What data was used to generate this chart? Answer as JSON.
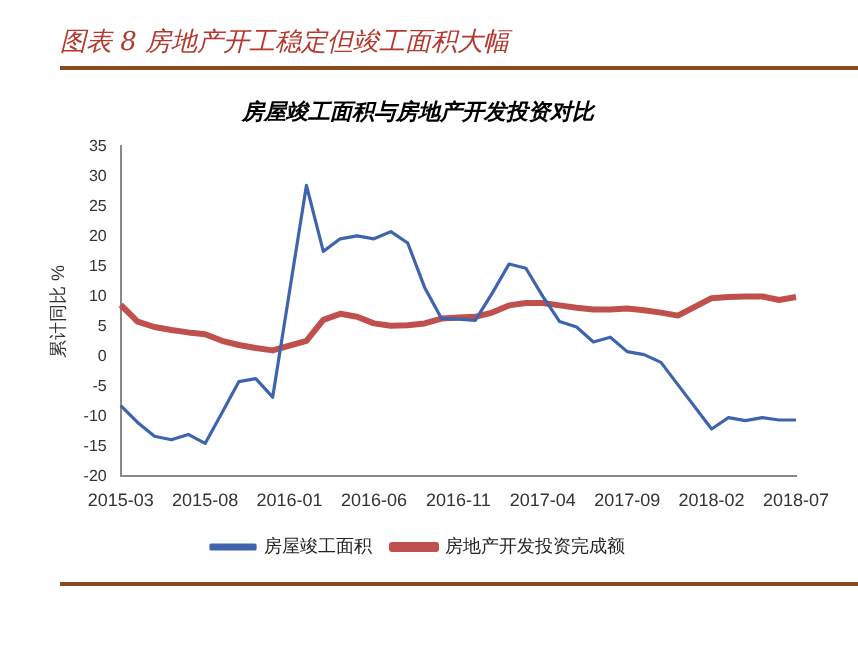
{
  "chart_data": {
    "type": "line",
    "title": "图表 8 房地产开工稳定但竣工面积大幅",
    "subtitle": "房屋竣工面积与房地产开发投资对比",
    "ylabel": "累计同比 %",
    "categories": [
      "2015-03",
      null,
      null,
      null,
      null,
      "2015-08",
      null,
      null,
      null,
      null,
      "2016-01",
      null,
      null,
      null,
      null,
      "2016-06",
      null,
      null,
      null,
      null,
      "2016-11",
      null,
      null,
      null,
      null,
      "2017-04",
      null,
      null,
      null,
      null,
      "2017-09",
      null,
      null,
      null,
      null,
      "2018-02",
      null,
      null,
      null,
      null,
      "2018-07"
    ],
    "series": [
      {
        "name": "房屋竣工面积",
        "color": "#3f64ae",
        "values": [
          -8.2,
          -11,
          -13.3,
          -13.9,
          -13,
          -14.5,
          -9.4,
          -4.2,
          -3.7,
          -6.8,
          null,
          28.5,
          17.5,
          19.6,
          20.1,
          19.6,
          20.8,
          18.9,
          11.5,
          6.3,
          6.2,
          6.0,
          10.5,
          15.4,
          14.7,
          10,
          5.8,
          4.9,
          2.4,
          3.2,
          0.8,
          0.3,
          -1,
          -4.7,
          null,
          -12.1,
          -10.2,
          -10.7,
          -10.2,
          -10.6,
          -10.6
        ]
      },
      {
        "name": "房地产开发投资完成额",
        "color": "#c0504d",
        "values": [
          8.6,
          5.8,
          4.9,
          4.4,
          4.0,
          3.7,
          2.6,
          1.9,
          1.4,
          1.0,
          null,
          2.6,
          6.1,
          7.1,
          6.6,
          5.5,
          5.1,
          5.2,
          5.5,
          6.3,
          6.5,
          6.6,
          7.3,
          8.5,
          8.9,
          8.9,
          8.5,
          8.1,
          7.8,
          7.8,
          8.0,
          7.7,
          7.3,
          6.8,
          null,
          9.7,
          9.9,
          10.0,
          10.0,
          9.4,
          9.9
        ]
      }
    ],
    "ylim": [
      -20,
      35
    ],
    "yticks": [
      -20,
      -15,
      -10,
      -5,
      0,
      5,
      10,
      15,
      20,
      25,
      30,
      35
    ],
    "grid": false,
    "legend": "bottom",
    "marker": "none",
    "line_style": "solid"
  }
}
